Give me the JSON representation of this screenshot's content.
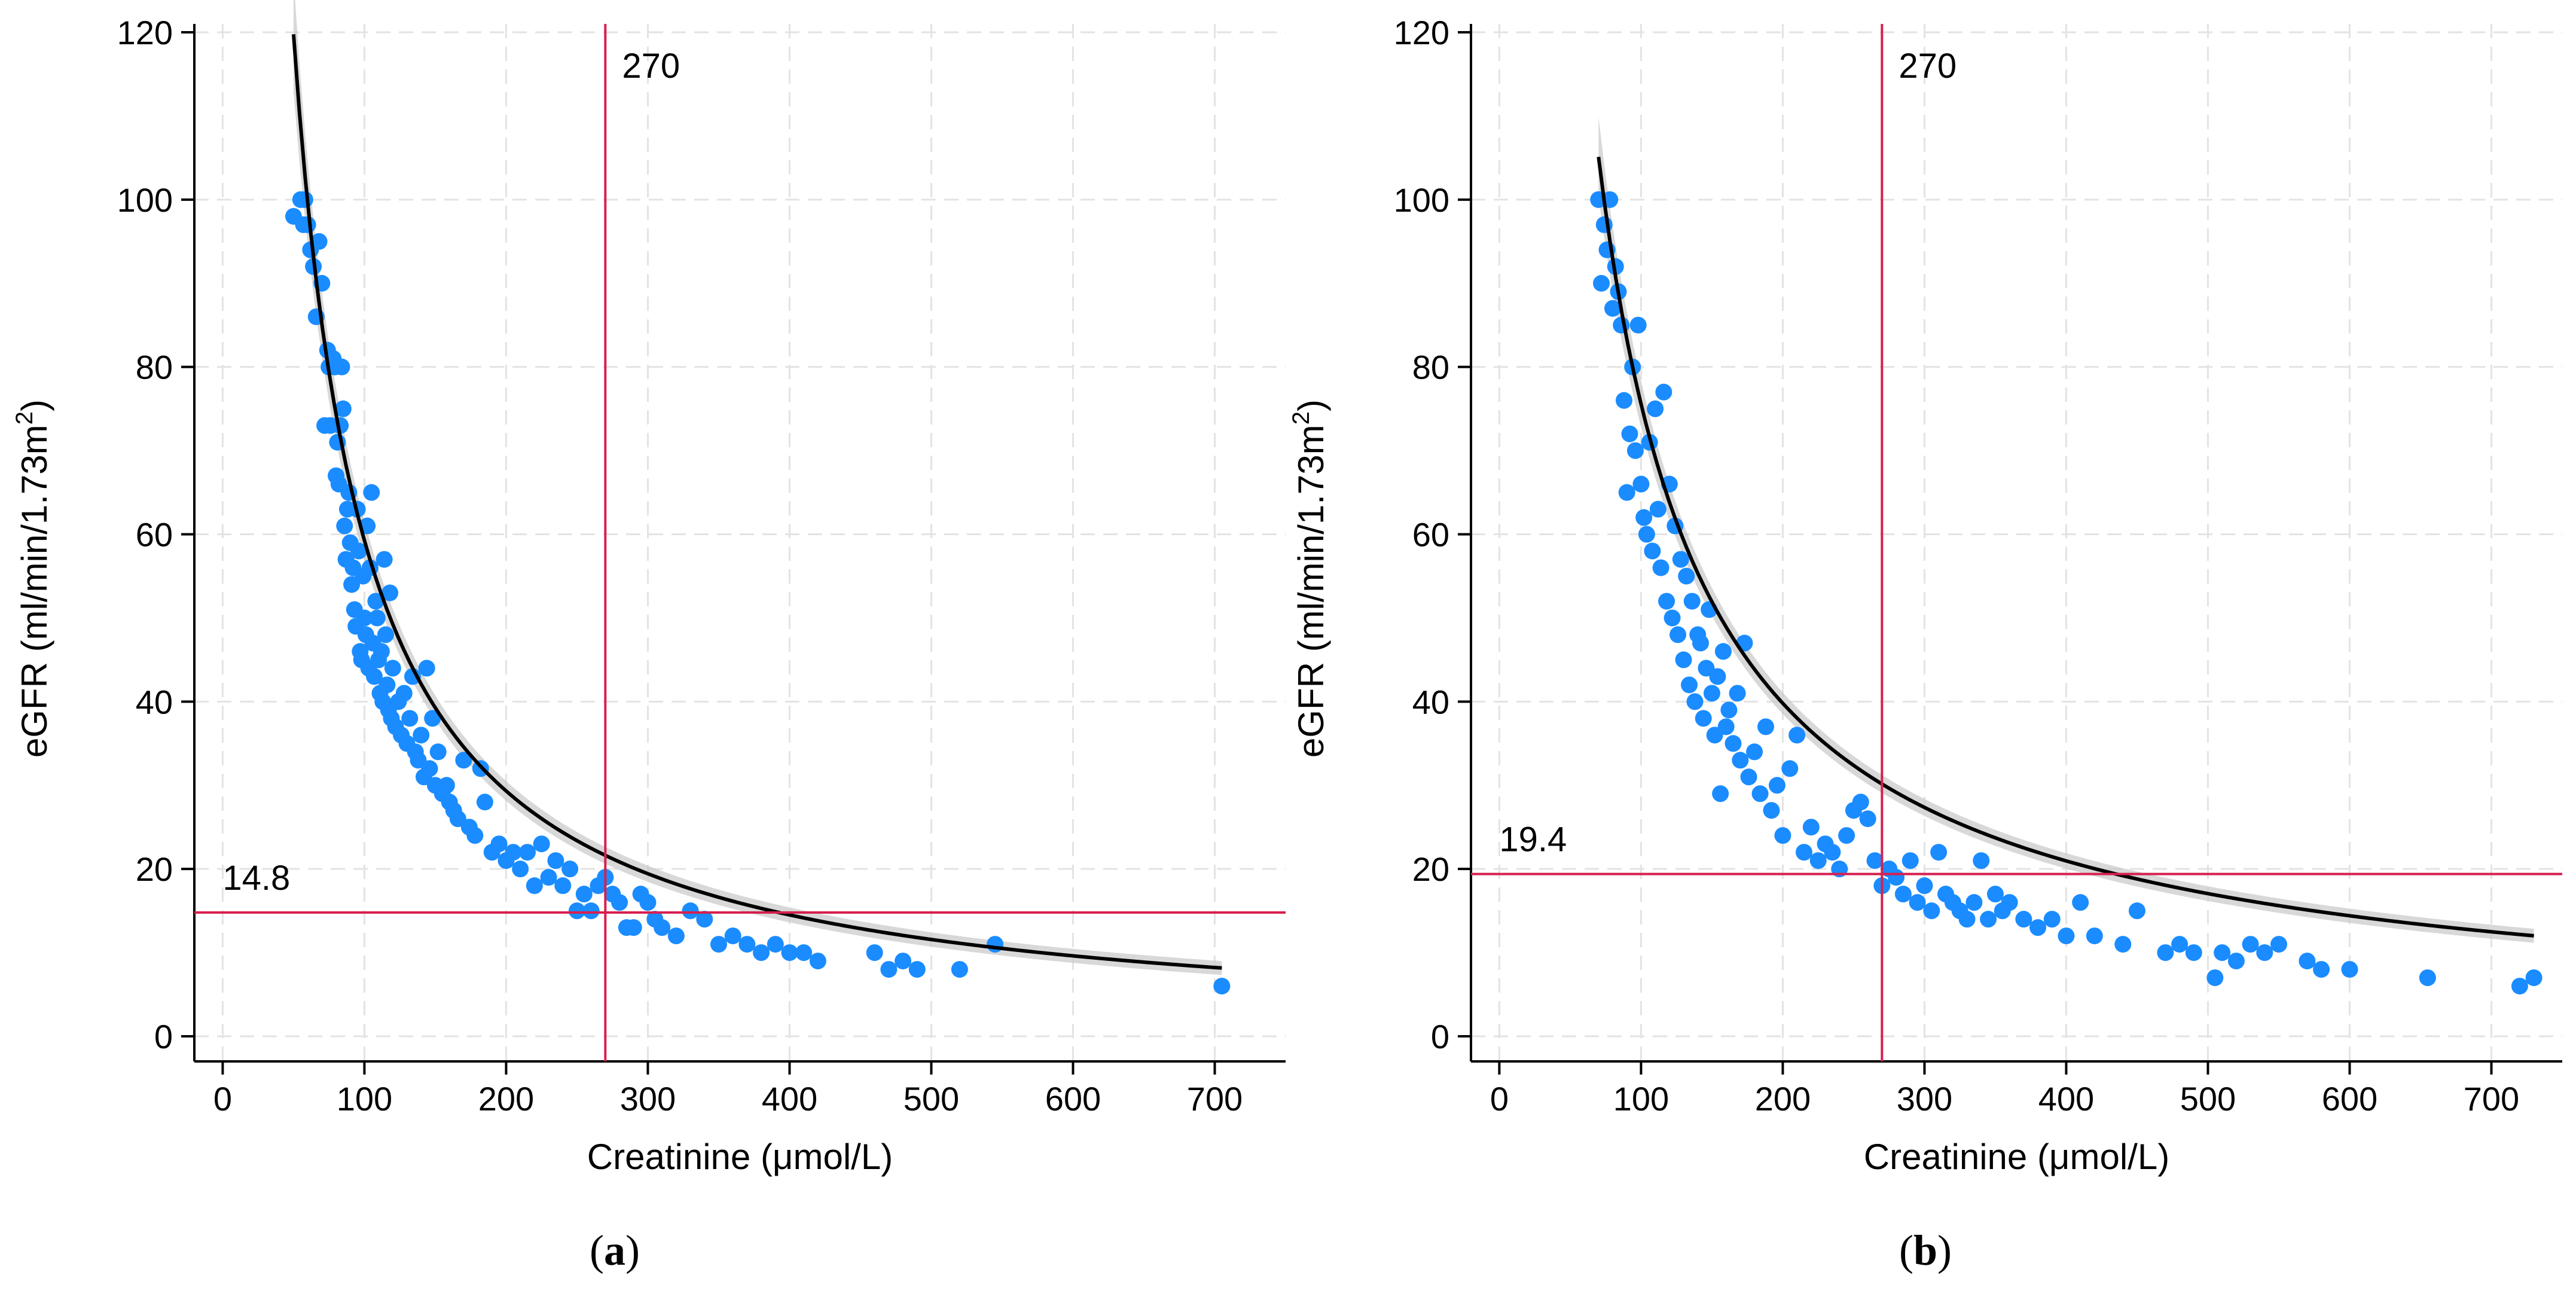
{
  "colors": {
    "points": "#1a8cff",
    "curve": "#000000",
    "ci_band": "#c8c8c8",
    "reference": "#d6204f",
    "grid": "#e3e3e3",
    "axis": "#000000"
  },
  "chart_data": [
    {
      "panel": "(a)",
      "panel_letter": "a",
      "type": "scatter",
      "xlabel": "Creatinine (μmol/L)",
      "ylabel_main": "eGFR (ml/min/1.73m",
      "ylabel_sup": "2",
      "ylabel_end": ")",
      "xlim": [
        -20,
        750
      ],
      "ylim": [
        -3,
        121
      ],
      "xticks": [
        0,
        100,
        200,
        300,
        400,
        500,
        600,
        700
      ],
      "yticks": [
        0,
        20,
        40,
        60,
        80,
        100,
        120
      ],
      "grid": true,
      "vline": {
        "x": 270,
        "label": "270"
      },
      "hline": {
        "y": 14.8,
        "label": "14.8"
      },
      "fit": {
        "model": "power",
        "a": 6350,
        "b": -1.015,
        "x_range": [
          50,
          705
        ],
        "ci_width_at_min": 6
      },
      "points": [
        [
          50,
          98
        ],
        [
          55,
          100
        ],
        [
          57,
          97
        ],
        [
          58,
          100
        ],
        [
          60,
          97
        ],
        [
          62,
          94
        ],
        [
          64,
          92
        ],
        [
          66,
          86
        ],
        [
          68,
          95
        ],
        [
          70,
          90
        ],
        [
          72,
          73
        ],
        [
          74,
          82
        ],
        [
          75,
          80
        ],
        [
          76,
          73
        ],
        [
          78,
          81
        ],
        [
          79,
          80
        ],
        [
          80,
          67
        ],
        [
          81,
          71
        ],
        [
          82,
          66
        ],
        [
          83,
          73
        ],
        [
          84,
          80
        ],
        [
          85,
          75
        ],
        [
          86,
          61
        ],
        [
          87,
          57
        ],
        [
          88,
          63
        ],
        [
          89,
          65
        ],
        [
          90,
          59
        ],
        [
          91,
          54
        ],
        [
          92,
          56
        ],
        [
          93,
          51
        ],
        [
          94,
          49
        ],
        [
          95,
          63
        ],
        [
          96,
          58
        ],
        [
          97,
          46
        ],
        [
          98,
          45
        ],
        [
          99,
          55
        ],
        [
          100,
          50
        ],
        [
          101,
          48
        ],
        [
          102,
          61
        ],
        [
          103,
          44
        ],
        [
          104,
          56
        ],
        [
          105,
          65
        ],
        [
          106,
          47
        ],
        [
          107,
          43
        ],
        [
          108,
          52
        ],
        [
          109,
          50
        ],
        [
          110,
          45
        ],
        [
          111,
          41
        ],
        [
          112,
          46
        ],
        [
          113,
          40
        ],
        [
          114,
          57
        ],
        [
          115,
          48
        ],
        [
          116,
          42
        ],
        [
          117,
          39
        ],
        [
          118,
          53
        ],
        [
          119,
          38
        ],
        [
          120,
          44
        ],
        [
          122,
          37
        ],
        [
          124,
          40
        ],
        [
          126,
          36
        ],
        [
          128,
          41
        ],
        [
          130,
          35
        ],
        [
          132,
          38
        ],
        [
          134,
          43
        ],
        [
          136,
          34
        ],
        [
          138,
          33
        ],
        [
          140,
          36
        ],
        [
          142,
          31
        ],
        [
          144,
          44
        ],
        [
          146,
          32
        ],
        [
          148,
          38
        ],
        [
          150,
          30
        ],
        [
          152,
          34
        ],
        [
          155,
          29
        ],
        [
          158,
          30
        ],
        [
          160,
          28
        ],
        [
          163,
          27
        ],
        [
          166,
          26
        ],
        [
          170,
          33
        ],
        [
          174,
          25
        ],
        [
          178,
          24
        ],
        [
          182,
          32
        ],
        [
          185,
          28
        ],
        [
          190,
          22
        ],
        [
          195,
          23
        ],
        [
          200,
          21
        ],
        [
          205,
          22
        ],
        [
          210,
          20
        ],
        [
          215,
          22
        ],
        [
          220,
          18
        ],
        [
          225,
          23
        ],
        [
          230,
          19
        ],
        [
          235,
          21
        ],
        [
          240,
          18
        ],
        [
          245,
          20
        ],
        [
          250,
          15
        ],
        [
          255,
          17
        ],
        [
          260,
          15
        ],
        [
          265,
          18
        ],
        [
          270,
          19
        ],
        [
          275,
          17
        ],
        [
          280,
          16
        ],
        [
          285,
          13
        ],
        [
          290,
          13
        ],
        [
          295,
          17
        ],
        [
          300,
          16
        ],
        [
          305,
          14
        ],
        [
          310,
          13
        ],
        [
          320,
          12
        ],
        [
          330,
          15
        ],
        [
          340,
          14
        ],
        [
          350,
          11
        ],
        [
          360,
          12
        ],
        [
          370,
          11
        ],
        [
          380,
          10
        ],
        [
          390,
          11
        ],
        [
          400,
          10
        ],
        [
          410,
          10
        ],
        [
          420,
          9
        ],
        [
          460,
          10
        ],
        [
          470,
          8
        ],
        [
          480,
          9
        ],
        [
          490,
          8
        ],
        [
          520,
          8
        ],
        [
          545,
          11
        ],
        [
          705,
          6
        ]
      ]
    },
    {
      "panel": "(b)",
      "panel_letter": "b",
      "type": "scatter",
      "xlabel": "Creatinine (μmol/L)",
      "ylabel_main": "eGFR (ml/min/1.73m",
      "ylabel_sup": "2",
      "ylabel_end": ")",
      "xlim": [
        -20,
        750
      ],
      "ylim": [
        -3,
        121
      ],
      "xticks": [
        0,
        100,
        200,
        300,
        400,
        500,
        600,
        700
      ],
      "yticks": [
        0,
        20,
        40,
        60,
        80,
        100,
        120
      ],
      "grid": true,
      "vline": {
        "x": 270,
        "label": "270"
      },
      "hline": {
        "y": 19.4,
        "label": "19.4"
      },
      "fit": {
        "model": "power",
        "a": 5350,
        "b": -0.925,
        "x_range": [
          70,
          730
        ],
        "ci_width_at_min": 4
      },
      "points": [
        [
          70,
          100
        ],
        [
          72,
          90
        ],
        [
          74,
          97
        ],
        [
          76,
          94
        ],
        [
          78,
          100
        ],
        [
          80,
          87
        ],
        [
          82,
          92
        ],
        [
          84,
          89
        ],
        [
          86,
          85
        ],
        [
          88,
          76
        ],
        [
          90,
          65
        ],
        [
          92,
          72
        ],
        [
          94,
          80
        ],
        [
          96,
          70
        ],
        [
          98,
          85
        ],
        [
          100,
          66
        ],
        [
          102,
          62
        ],
        [
          104,
          60
        ],
        [
          106,
          71
        ],
        [
          108,
          58
        ],
        [
          110,
          75
        ],
        [
          112,
          63
        ],
        [
          114,
          56
        ],
        [
          116,
          77
        ],
        [
          118,
          52
        ],
        [
          120,
          66
        ],
        [
          122,
          50
        ],
        [
          124,
          61
        ],
        [
          126,
          48
        ],
        [
          128,
          57
        ],
        [
          130,
          45
        ],
        [
          132,
          55
        ],
        [
          134,
          42
        ],
        [
          136,
          52
        ],
        [
          138,
          40
        ],
        [
          140,
          48
        ],
        [
          142,
          47
        ],
        [
          144,
          38
        ],
        [
          146,
          44
        ],
        [
          148,
          51
        ],
        [
          150,
          41
        ],
        [
          152,
          36
        ],
        [
          154,
          43
        ],
        [
          156,
          29
        ],
        [
          158,
          46
        ],
        [
          160,
          37
        ],
        [
          162,
          39
        ],
        [
          165,
          35
        ],
        [
          168,
          41
        ],
        [
          170,
          33
        ],
        [
          173,
          47
        ],
        [
          176,
          31
        ],
        [
          180,
          34
        ],
        [
          184,
          29
        ],
        [
          188,
          37
        ],
        [
          192,
          27
        ],
        [
          196,
          30
        ],
        [
          200,
          24
        ],
        [
          205,
          32
        ],
        [
          210,
          36
        ],
        [
          215,
          22
        ],
        [
          220,
          25
        ],
        [
          225,
          21
        ],
        [
          230,
          23
        ],
        [
          235,
          22
        ],
        [
          240,
          20
        ],
        [
          245,
          24
        ],
        [
          250,
          27
        ],
        [
          255,
          28
        ],
        [
          260,
          26
        ],
        [
          265,
          21
        ],
        [
          270,
          18
        ],
        [
          275,
          20
        ],
        [
          280,
          19
        ],
        [
          285,
          17
        ],
        [
          290,
          21
        ],
        [
          295,
          16
        ],
        [
          300,
          18
        ],
        [
          305,
          15
        ],
        [
          310,
          22
        ],
        [
          315,
          17
        ],
        [
          320,
          16
        ],
        [
          325,
          15
        ],
        [
          330,
          14
        ],
        [
          335,
          16
        ],
        [
          340,
          21
        ],
        [
          345,
          14
        ],
        [
          350,
          17
        ],
        [
          355,
          15
        ],
        [
          360,
          16
        ],
        [
          370,
          14
        ],
        [
          380,
          13
        ],
        [
          390,
          14
        ],
        [
          400,
          12
        ],
        [
          410,
          16
        ],
        [
          420,
          12
        ],
        [
          440,
          11
        ],
        [
          450,
          15
        ],
        [
          470,
          10
        ],
        [
          480,
          11
        ],
        [
          490,
          10
        ],
        [
          505,
          7
        ],
        [
          510,
          10
        ],
        [
          520,
          9
        ],
        [
          530,
          11
        ],
        [
          540,
          10
        ],
        [
          550,
          11
        ],
        [
          570,
          9
        ],
        [
          580,
          8
        ],
        [
          600,
          8
        ],
        [
          655,
          7
        ],
        [
          720,
          6
        ],
        [
          730,
          7
        ]
      ]
    }
  ]
}
